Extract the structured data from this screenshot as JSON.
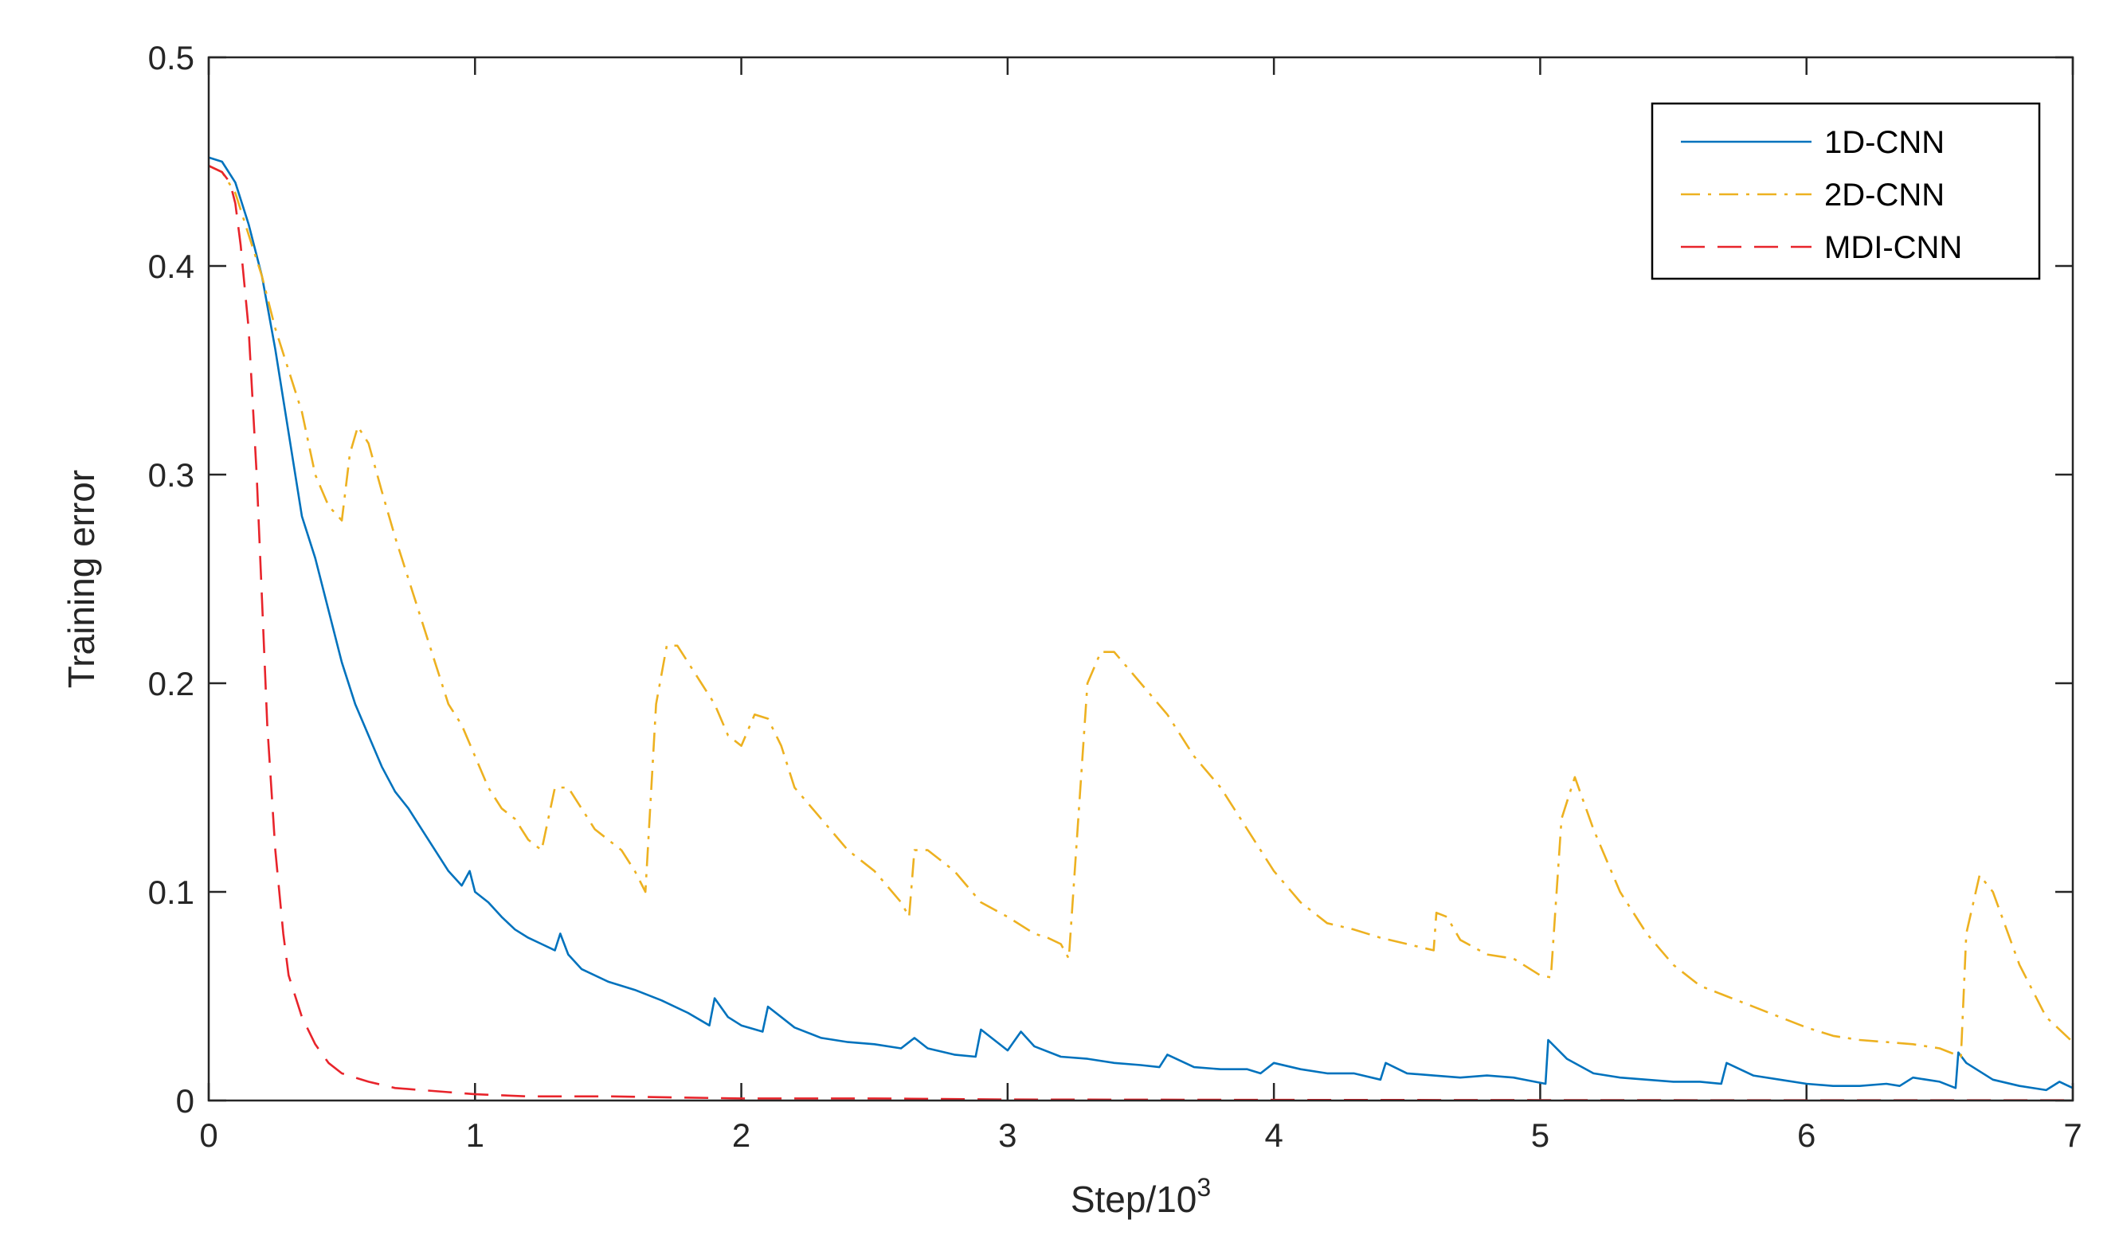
{
  "chart_data": {
    "type": "line",
    "title": "",
    "xlabel": "Step/10",
    "xlabel_exponent": "3",
    "ylabel": "Training error",
    "xlim": [
      0,
      7
    ],
    "ylim": [
      0,
      0.5
    ],
    "xticks": [
      "0",
      "1",
      "2",
      "3",
      "4",
      "5",
      "6",
      "7"
    ],
    "yticks": [
      "0",
      "0.1",
      "0.2",
      "0.3",
      "0.4",
      "0.5"
    ],
    "grid": false,
    "legend_position": "top-right",
    "series": [
      {
        "name": "1D-CNN",
        "color": "#0072BD",
        "style": "solid",
        "x": [
          0,
          0.05,
          0.1,
          0.15,
          0.2,
          0.25,
          0.3,
          0.35,
          0.4,
          0.45,
          0.5,
          0.55,
          0.6,
          0.65,
          0.7,
          0.75,
          0.8,
          0.85,
          0.9,
          0.95,
          0.98,
          1.0,
          1.05,
          1.1,
          1.15,
          1.2,
          1.25,
          1.3,
          1.32,
          1.35,
          1.4,
          1.5,
          1.6,
          1.7,
          1.8,
          1.88,
          1.9,
          1.95,
          2.0,
          2.08,
          2.1,
          2.2,
          2.3,
          2.4,
          2.5,
          2.6,
          2.65,
          2.7,
          2.8,
          2.88,
          2.9,
          3.0,
          3.05,
          3.1,
          3.2,
          3.3,
          3.4,
          3.5,
          3.57,
          3.6,
          3.7,
          3.8,
          3.9,
          3.95,
          4.0,
          4.1,
          4.2,
          4.3,
          4.4,
          4.42,
          4.5,
          4.6,
          4.7,
          4.8,
          4.9,
          5.02,
          5.03,
          5.1,
          5.2,
          5.3,
          5.4,
          5.5,
          5.6,
          5.68,
          5.7,
          5.8,
          5.9,
          6.0,
          6.1,
          6.2,
          6.3,
          6.35,
          6.4,
          6.5,
          6.56,
          6.57,
          6.6,
          6.7,
          6.8,
          6.9,
          6.95,
          7.0
        ],
        "values": [
          0.452,
          0.45,
          0.44,
          0.42,
          0.395,
          0.36,
          0.32,
          0.28,
          0.26,
          0.235,
          0.21,
          0.19,
          0.175,
          0.16,
          0.148,
          0.14,
          0.13,
          0.12,
          0.11,
          0.103,
          0.11,
          0.1,
          0.095,
          0.088,
          0.082,
          0.078,
          0.075,
          0.072,
          0.08,
          0.07,
          0.063,
          0.057,
          0.053,
          0.048,
          0.042,
          0.036,
          0.049,
          0.04,
          0.036,
          0.033,
          0.045,
          0.035,
          0.03,
          0.028,
          0.027,
          0.025,
          0.03,
          0.025,
          0.022,
          0.021,
          0.034,
          0.024,
          0.033,
          0.026,
          0.021,
          0.02,
          0.018,
          0.017,
          0.016,
          0.022,
          0.016,
          0.015,
          0.015,
          0.013,
          0.018,
          0.015,
          0.013,
          0.013,
          0.01,
          0.018,
          0.013,
          0.012,
          0.011,
          0.012,
          0.011,
          0.008,
          0.029,
          0.02,
          0.013,
          0.011,
          0.01,
          0.009,
          0.009,
          0.008,
          0.018,
          0.012,
          0.01,
          0.008,
          0.007,
          0.007,
          0.008,
          0.007,
          0.011,
          0.009,
          0.006,
          0.023,
          0.018,
          0.01,
          0.007,
          0.005,
          0.009,
          0.006
        ]
      },
      {
        "name": "2D-CNN",
        "color": "#EDB120",
        "style": "dashdot",
        "x": [
          0,
          0.05,
          0.1,
          0.15,
          0.2,
          0.25,
          0.3,
          0.35,
          0.4,
          0.45,
          0.5,
          0.53,
          0.56,
          0.6,
          0.65,
          0.7,
          0.75,
          0.8,
          0.85,
          0.9,
          0.95,
          1.0,
          1.05,
          1.1,
          1.15,
          1.2,
          1.25,
          1.3,
          1.35,
          1.4,
          1.45,
          1.5,
          1.55,
          1.6,
          1.64,
          1.68,
          1.72,
          1.76,
          1.8,
          1.85,
          1.9,
          1.95,
          2.0,
          2.05,
          2.1,
          2.15,
          2.2,
          2.3,
          2.4,
          2.5,
          2.6,
          2.63,
          2.65,
          2.7,
          2.8,
          2.9,
          3.0,
          3.1,
          3.15,
          3.2,
          3.23,
          3.3,
          3.35,
          3.4,
          3.5,
          3.6,
          3.7,
          3.8,
          3.9,
          4.0,
          4.1,
          4.2,
          4.3,
          4.4,
          4.5,
          4.6,
          4.61,
          4.65,
          4.7,
          4.8,
          4.9,
          5.0,
          5.04,
          5.08,
          5.13,
          5.2,
          5.3,
          5.4,
          5.5,
          5.6,
          5.7,
          5.8,
          5.9,
          6.0,
          6.1,
          6.2,
          6.3,
          6.4,
          6.5,
          6.58,
          6.6,
          6.65,
          6.7,
          6.8,
          6.9,
          7.0
        ],
        "values": [
          0.448,
          0.445,
          0.435,
          0.415,
          0.395,
          0.37,
          0.35,
          0.33,
          0.3,
          0.285,
          0.278,
          0.31,
          0.323,
          0.315,
          0.292,
          0.27,
          0.25,
          0.23,
          0.21,
          0.19,
          0.18,
          0.165,
          0.15,
          0.14,
          0.135,
          0.125,
          0.12,
          0.15,
          0.15,
          0.14,
          0.13,
          0.125,
          0.12,
          0.11,
          0.1,
          0.19,
          0.218,
          0.218,
          0.21,
          0.2,
          0.19,
          0.175,
          0.17,
          0.185,
          0.183,
          0.17,
          0.15,
          0.135,
          0.12,
          0.11,
          0.095,
          0.088,
          0.12,
          0.12,
          0.11,
          0.095,
          0.088,
          0.08,
          0.078,
          0.075,
          0.068,
          0.2,
          0.215,
          0.215,
          0.2,
          0.185,
          0.165,
          0.15,
          0.13,
          0.11,
          0.095,
          0.085,
          0.082,
          0.078,
          0.075,
          0.072,
          0.09,
          0.088,
          0.077,
          0.07,
          0.068,
          0.06,
          0.059,
          0.135,
          0.155,
          0.13,
          0.1,
          0.08,
          0.065,
          0.055,
          0.05,
          0.045,
          0.04,
          0.035,
          0.031,
          0.029,
          0.028,
          0.027,
          0.025,
          0.021,
          0.08,
          0.108,
          0.1,
          0.065,
          0.04,
          0.028
        ]
      },
      {
        "name": "MDI-CNN",
        "color": "#E8242B",
        "style": "dashed",
        "x": [
          0,
          0.05,
          0.08,
          0.1,
          0.12,
          0.15,
          0.18,
          0.2,
          0.22,
          0.25,
          0.28,
          0.3,
          0.35,
          0.4,
          0.45,
          0.5,
          0.55,
          0.6,
          0.7,
          0.8,
          0.9,
          1.0,
          1.2,
          1.5,
          2.0,
          2.5,
          3.0,
          4.0,
          5.0,
          6.0,
          7.0
        ],
        "values": [
          0.448,
          0.445,
          0.44,
          0.43,
          0.41,
          0.37,
          0.3,
          0.24,
          0.18,
          0.12,
          0.08,
          0.06,
          0.04,
          0.027,
          0.018,
          0.013,
          0.011,
          0.009,
          0.006,
          0.005,
          0.004,
          0.003,
          0.002,
          0.002,
          0.001,
          0.001,
          0.0005,
          0.0003,
          0.0002,
          0.0001,
          0.0001
        ]
      }
    ]
  }
}
